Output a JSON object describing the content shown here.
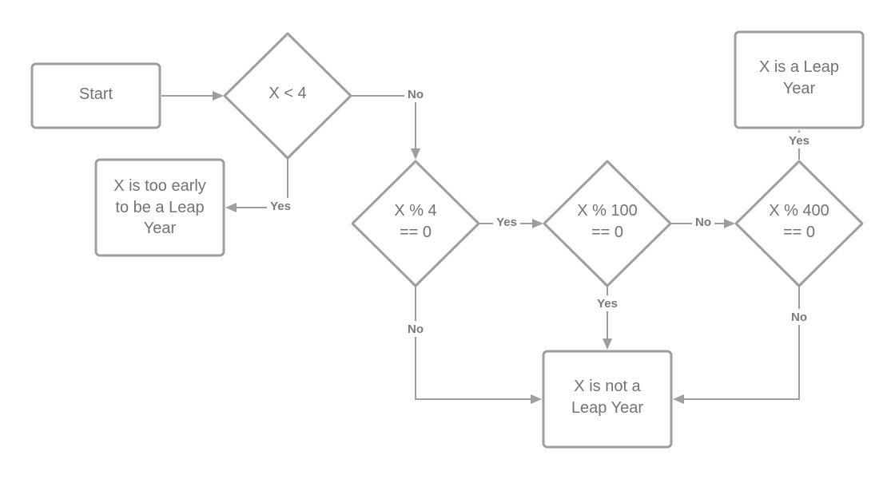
{
  "nodes": {
    "start": {
      "lines": [
        "Start"
      ]
    },
    "decision_lt4": {
      "lines": [
        "X < 4"
      ]
    },
    "too_early": {
      "lines": [
        "X is too early",
        "to be a Leap",
        "Year"
      ]
    },
    "decision_mod4": {
      "lines": [
        "X % 4",
        "== 0"
      ]
    },
    "decision_mod100": {
      "lines": [
        "X % 100",
        "== 0"
      ]
    },
    "decision_mod400": {
      "lines": [
        "X % 400",
        "== 0"
      ]
    },
    "is_leap": {
      "lines": [
        "X is a Leap",
        "Year"
      ]
    },
    "not_leap": {
      "lines": [
        "X is not a",
        "Leap Year"
      ]
    }
  },
  "edges": {
    "lt4_no": "No",
    "lt4_yes": "Yes",
    "mod4_yes": "Yes",
    "mod4_no": "No",
    "mod100_no": "No",
    "mod100_yes": "Yes",
    "mod400_yes": "Yes",
    "mod400_no": "No"
  },
  "colors": {
    "stroke": "#9e9e9e",
    "text": "#737373",
    "background": "#ffffff"
  }
}
